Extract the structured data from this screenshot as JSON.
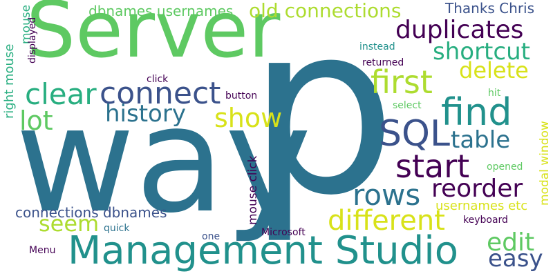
{
  "words": {
    "server": "Server",
    "way": "way",
    "p": "p",
    "management_studio": "Management Studio",
    "connect": "connect",
    "find": "find",
    "sql": "SQL",
    "start": "start",
    "duplicates": "duplicates",
    "old_connections": "old connections",
    "shortcut": "shortcut",
    "first": "first",
    "delete": "delete",
    "clear": "clear",
    "history": "history",
    "lot": "lot",
    "show": "show",
    "table": "table",
    "rows": "rows",
    "reorder": "reorder",
    "different": "different",
    "seem": "seem",
    "edit": "edit",
    "easy": "easy",
    "dbnames_usernames": "dbnames usernames",
    "thanks_chris": "Thanks Chris",
    "instead": "instead",
    "returned": "returned",
    "click": "click",
    "button": "button",
    "hit": "hit",
    "select": "select",
    "opened": "opened",
    "connections_dbnames": "connections dbnames",
    "usernames_etc": "usernames etc",
    "keyboard": "keyboard",
    "quick": "quick",
    "one": "one",
    "microsoft": "Microsoft",
    "menu": "Menu",
    "mouse": "mouse",
    "displayed": "displayed",
    "right_mouse": "right mouse",
    "mouse_click": "mouse click",
    "modal_window": "modal window"
  },
  "colors": {
    "dark_purple": "#440154",
    "indigo": "#3b528b",
    "dark_teal": "#2c728e",
    "teal": "#21918c",
    "sea_green": "#28ae80",
    "green": "#5ec962",
    "lime": "#addc30",
    "yellow": "#d8e219"
  }
}
